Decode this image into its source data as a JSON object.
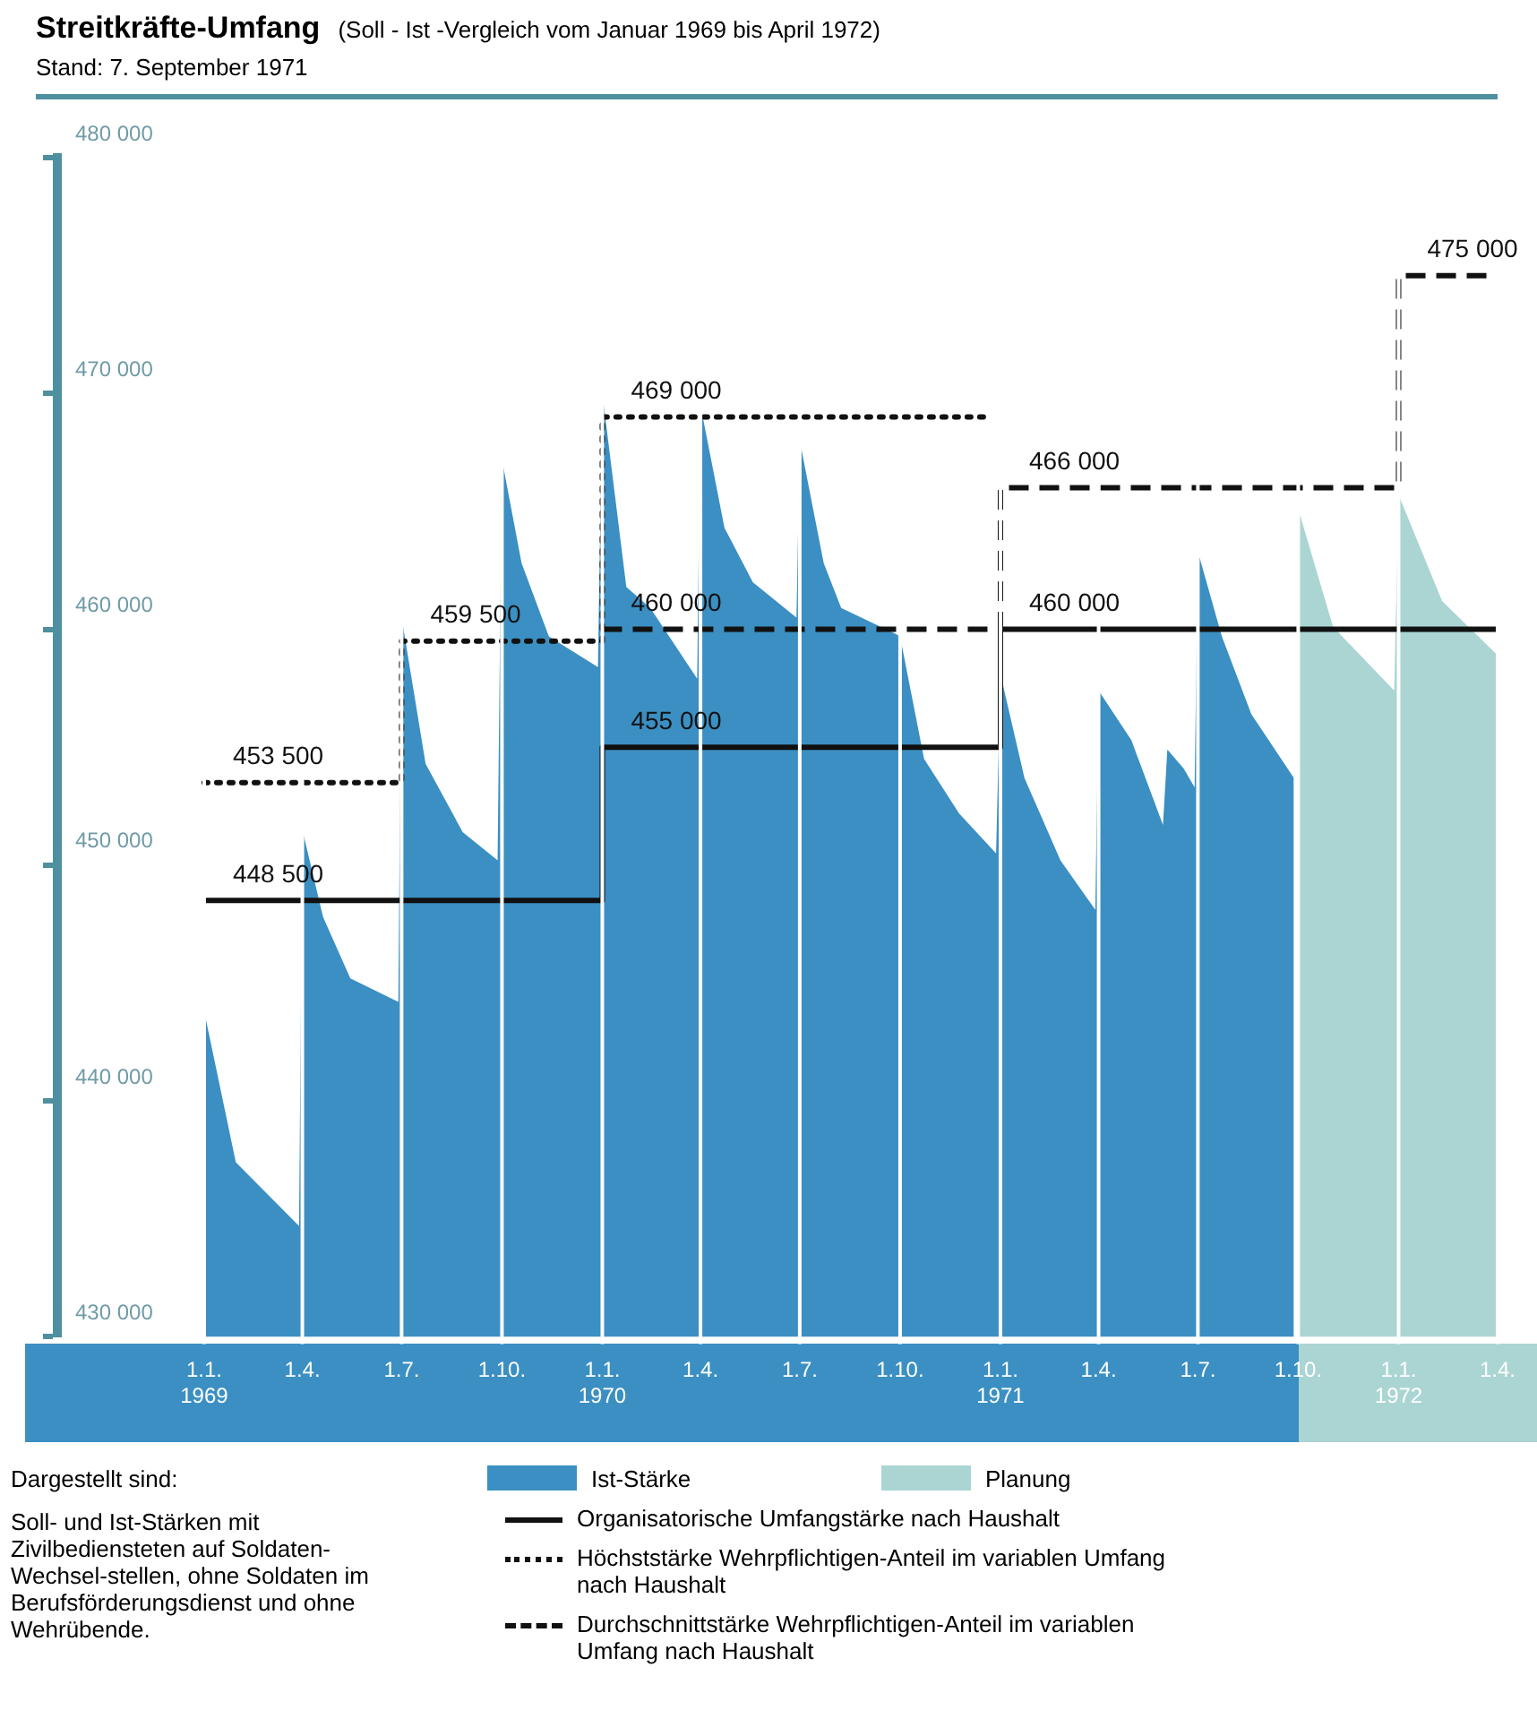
{
  "chart_data": {
    "type": "area",
    "title": "Streitkräfte-Umfang",
    "subtitle": "(Soll - Ist -Vergleich vom Januar 1969 bis April 1972)",
    "annotations": [
      "Stand: 7. September 1971",
      "Dargestellt sind:",
      "Soll- und Ist-Stärken mit Zivilbediensteten auf Soldaten-Wechsel-stellen, ohne Soldaten im Berufsförderungsdienst und ohne Wehrübende."
    ],
    "xlim": [
      "1968-08-19",
      "1972-04-01"
    ],
    "xticks": [
      {
        "value": "1969-01-01",
        "label": "1.1.\n1969"
      },
      {
        "value": "1969-04-01",
        "label": "1.4."
      },
      {
        "value": "1969-07-01",
        "label": "1.7."
      },
      {
        "value": "1969-10-01",
        "label": "1.10."
      },
      {
        "value": "1970-01-01",
        "label": "1.1.\n1970"
      },
      {
        "value": "1970-04-01",
        "label": "1.4."
      },
      {
        "value": "1970-07-01",
        "label": "1.7."
      },
      {
        "value": "1970-10-01",
        "label": "1.10."
      },
      {
        "value": "1971-01-01",
        "label": "1.1.\n1971"
      },
      {
        "value": "1971-04-01",
        "label": "1.4."
      },
      {
        "value": "1971-07-01",
        "label": "1.7."
      },
      {
        "value": "1971-10-01",
        "label": "1.10."
      },
      {
        "value": "1972-01-01",
        "label": "1.1.\n1972"
      },
      {
        "value": "1972-04-01",
        "label": "1.4."
      }
    ],
    "ylim": [
      430000,
      480000
    ],
    "yticks": [
      {
        "value": 430000,
        "label": "430 000"
      },
      {
        "value": 440000,
        "label": "440 000"
      },
      {
        "value": 450000,
        "label": "450 000"
      },
      {
        "value": 460000,
        "label": "460 000"
      },
      {
        "value": 470000,
        "label": "470 000"
      },
      {
        "value": 480000,
        "label": "480 000"
      }
    ],
    "grid": "x",
    "legend": "bottom",
    "series": [
      {
        "name": "Ist-Stärke",
        "color": "#3b8fc2",
        "x": [
          "1969-01-01",
          "1969-01-30",
          "1969-03-29",
          "1969-04-01",
          "1969-04-20",
          "1969-05-15",
          "1969-06-28",
          "1969-07-01",
          "1969-07-23",
          "1969-08-26",
          "1969-09-27",
          "1969-10-01",
          "1969-10-19",
          "1969-11-13",
          "1969-12-28",
          "1970-01-01",
          "1970-01-23",
          "1970-02-14",
          "1970-03-29",
          "1970-04-01",
          "1970-04-23",
          "1970-05-19",
          "1970-06-28",
          "1970-07-01",
          "1970-07-23",
          "1970-08-08",
          "1970-09-27",
          "1970-10-01",
          "1970-10-23",
          "1970-11-24",
          "1970-12-28",
          "1971-01-01",
          "1971-01-23",
          "1971-02-25",
          "1971-03-29",
          "1971-04-01",
          "1971-05-01",
          "1971-05-30",
          "1971-06-03",
          "1971-06-18",
          "1971-06-28",
          "1971-07-01",
          "1971-07-23",
          "1971-08-19",
          "1971-09-27"
        ],
        "values": [
          443800,
          437400,
          434700,
          451500,
          447800,
          445200,
          444200,
          460500,
          454300,
          451400,
          450200,
          467200,
          462800,
          459700,
          458400,
          470000,
          461800,
          460900,
          457900,
          469500,
          464300,
          462000,
          460500,
          468000,
          462800,
          460900,
          459800,
          459700,
          454500,
          452200,
          450500,
          458100,
          453700,
          450200,
          448100,
          457400,
          455300,
          451700,
          454900,
          454100,
          453300,
          463300,
          459700,
          456400,
          453700
        ]
      },
      {
        "name": "Planung",
        "color": "#aad5d3",
        "x": [
          "1971-10-01",
          "1971-11-02",
          "1971-12-28",
          "1972-01-01",
          "1972-02-10",
          "1972-04-01"
        ],
        "values": [
          465100,
          460100,
          457400,
          465700,
          461200,
          458900
        ]
      },
      {
        "name": "Organisatorische Umfangstärke nach Haushalt",
        "type": "step",
        "line_style": "solid",
        "color": "#111111",
        "x": [
          "1969-01-01",
          "1970-01-01",
          "1971-01-01",
          "1972-04-01"
        ],
        "values": [
          448500,
          455000,
          460000,
          460000
        ],
        "value_labels": [
          "448 500",
          "455 000",
          "460 000",
          null
        ]
      },
      {
        "name": "Höchststärke Wehrpflichtigen-Anteil im variablen Umfang nach Haushalt",
        "type": "step",
        "line_style": "dotted",
        "color": "#111111",
        "x": [
          "1969-01-01",
          "1969-07-01",
          "1970-01-01",
          "1970-12-20"
        ],
        "values": [
          453500,
          459500,
          469000,
          469000
        ],
        "value_labels": [
          "453 500",
          "459 500",
          "469 000",
          null
        ]
      },
      {
        "name": "Durchschnittstärke Wehrpflichtigen-Anteil im variablen Umfang nach Haushalt",
        "type": "step",
        "line_style": "dashed",
        "color": "#111111",
        "x": [
          "1970-01-01",
          "1971-01-01",
          "1972-01-01",
          "1972-04-01"
        ],
        "values": [
          460000,
          466000,
          475000,
          475000
        ],
        "value_labels": [
          "460 000",
          "466 000",
          "475 000",
          null
        ]
      }
    ]
  }
}
